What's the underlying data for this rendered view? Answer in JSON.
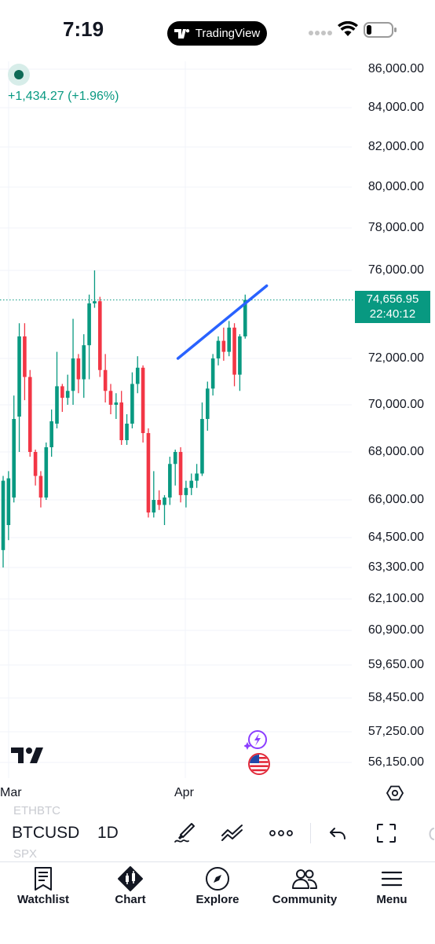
{
  "status_bar": {
    "time": "7:19",
    "app_name": "TradingView"
  },
  "chart": {
    "price_change": "+1,434.27 (+1.96%)",
    "current_price": "74,656.95",
    "countdown": "22:40:12",
    "y_axis_labels": [
      "86,000.00",
      "84,000.00",
      "82,000.00",
      "80,000.00",
      "78,000.00",
      "76,000.00",
      "72,000.00",
      "70,000.00",
      "68,000.00",
      "66,000.00",
      "64,500.00",
      "63,300.00",
      "62,100.00",
      "60,900.00",
      "59,650.00",
      "58,450.00",
      "57,250.00",
      "56,150.00"
    ],
    "x_axis_labels": [
      "Mar",
      "Apr"
    ],
    "colors": {
      "up": "#089981",
      "down": "#f23645",
      "trendline": "#2962ff",
      "price_line": "#089981"
    }
  },
  "chart_data": {
    "type": "candlestick",
    "symbol": "BTCUSD",
    "interval": "1D",
    "x_labels": [
      "Mar",
      "Apr"
    ],
    "last_price": 74656.95,
    "candles": [
      {
        "o": 64000,
        "h": 67000,
        "l": 63300,
        "c": 66800
      },
      {
        "o": 65000,
        "h": 67200,
        "l": 64400,
        "c": 66900
      },
      {
        "o": 66100,
        "h": 70400,
        "l": 65900,
        "c": 69400
      },
      {
        "o": 69500,
        "h": 73600,
        "l": 68000,
        "c": 73000
      },
      {
        "o": 73000,
        "h": 73600,
        "l": 70200,
        "c": 71200
      },
      {
        "o": 71200,
        "h": 71500,
        "l": 67800,
        "c": 68000
      },
      {
        "o": 68000,
        "h": 68100,
        "l": 66600,
        "c": 67000
      },
      {
        "o": 67000,
        "h": 67200,
        "l": 65700,
        "c": 66100
      },
      {
        "o": 66100,
        "h": 68400,
        "l": 66000,
        "c": 68200
      },
      {
        "o": 68200,
        "h": 69800,
        "l": 67800,
        "c": 69300
      },
      {
        "o": 69200,
        "h": 72300,
        "l": 69000,
        "c": 70800
      },
      {
        "o": 70800,
        "h": 70900,
        "l": 69700,
        "c": 70300
      },
      {
        "o": 70300,
        "h": 71300,
        "l": 70000,
        "c": 70600
      },
      {
        "o": 70600,
        "h": 73800,
        "l": 70000,
        "c": 72000
      },
      {
        "o": 72000,
        "h": 72200,
        "l": 70500,
        "c": 71100
      },
      {
        "o": 71100,
        "h": 73100,
        "l": 70300,
        "c": 72600
      },
      {
        "o": 72600,
        "h": 74900,
        "l": 71100,
        "c": 74500
      },
      {
        "o": 74500,
        "h": 76000,
        "l": 74300,
        "c": 74600
      },
      {
        "o": 74600,
        "h": 74800,
        "l": 71200,
        "c": 71500
      },
      {
        "o": 71500,
        "h": 72200,
        "l": 70100,
        "c": 70600
      },
      {
        "o": 70600,
        "h": 70900,
        "l": 69600,
        "c": 70000
      },
      {
        "o": 70000,
        "h": 70500,
        "l": 69400,
        "c": 70100
      },
      {
        "o": 70100,
        "h": 70600,
        "l": 68300,
        "c": 68500
      },
      {
        "o": 68500,
        "h": 69600,
        "l": 68300,
        "c": 69200
      },
      {
        "o": 69200,
        "h": 71400,
        "l": 69000,
        "c": 70900
      },
      {
        "o": 70900,
        "h": 72100,
        "l": 70500,
        "c": 71600
      },
      {
        "o": 71600,
        "h": 71700,
        "l": 68400,
        "c": 68800
      },
      {
        "o": 68800,
        "h": 69000,
        "l": 65300,
        "c": 65500
      },
      {
        "o": 65500,
        "h": 67200,
        "l": 65300,
        "c": 66000
      },
      {
        "o": 66000,
        "h": 66400,
        "l": 65600,
        "c": 65800
      },
      {
        "o": 65800,
        "h": 66200,
        "l": 65000,
        "c": 66100
      },
      {
        "o": 66100,
        "h": 67800,
        "l": 65800,
        "c": 67500
      },
      {
        "o": 67500,
        "h": 68100,
        "l": 66600,
        "c": 68000
      },
      {
        "o": 68000,
        "h": 68200,
        "l": 65900,
        "c": 66200
      },
      {
        "o": 66200,
        "h": 66800,
        "l": 65700,
        "c": 66500
      },
      {
        "o": 66500,
        "h": 67100,
        "l": 66200,
        "c": 66800
      },
      {
        "o": 66800,
        "h": 67500,
        "l": 66500,
        "c": 67100
      },
      {
        "o": 67100,
        "h": 70100,
        "l": 67000,
        "c": 69400
      },
      {
        "o": 69400,
        "h": 71000,
        "l": 68900,
        "c": 70700
      },
      {
        "o": 70700,
        "h": 72200,
        "l": 70400,
        "c": 72000
      },
      {
        "o": 72000,
        "h": 73000,
        "l": 71700,
        "c": 72800
      },
      {
        "o": 72800,
        "h": 73400,
        "l": 71900,
        "c": 72300
      },
      {
        "o": 72300,
        "h": 73700,
        "l": 72100,
        "c": 73400
      },
      {
        "o": 73400,
        "h": 73600,
        "l": 70800,
        "c": 71300
      },
      {
        "o": 71300,
        "h": 73100,
        "l": 70600,
        "c": 73000
      },
      {
        "o": 73000,
        "h": 74900,
        "l": 72900,
        "c": 74657
      }
    ],
    "trendline": [
      {
        "index": 32.5,
        "price": 72000
      },
      {
        "index": 49,
        "price": 75300
      }
    ],
    "y_axis_ticks": [
      86000,
      84000,
      82000,
      80000,
      78000,
      76000,
      72000,
      70000,
      68000,
      66000,
      64500,
      63300,
      62100,
      60900,
      59650,
      58450,
      57250,
      56150
    ]
  },
  "toolbar": {
    "symbol": "BTCUSD",
    "interval": "1D",
    "ghost_above": "ETHBTC",
    "ghost_below": "SPX"
  },
  "tabs": [
    {
      "label": "Watchlist",
      "icon": "watchlist-icon"
    },
    {
      "label": "Chart",
      "icon": "chart-icon"
    },
    {
      "label": "Explore",
      "icon": "compass-icon"
    },
    {
      "label": "Community",
      "icon": "community-icon"
    },
    {
      "label": "Menu",
      "icon": "hamburger-icon"
    }
  ]
}
